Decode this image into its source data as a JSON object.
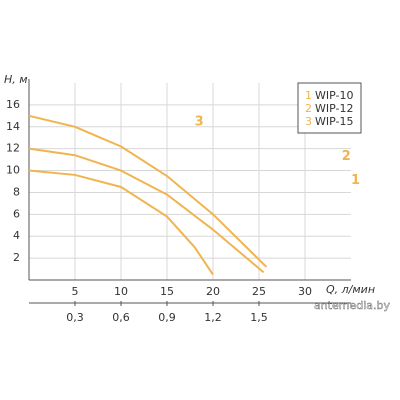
{
  "chart_data": {
    "type": "line",
    "y_label": "H, м",
    "x_label": "Q, л/мин",
    "x": [
      0,
      5,
      10,
      15,
      20,
      25
    ],
    "series": [
      {
        "name": "WIP-10",
        "label": "1",
        "color": "#f0b450",
        "x": [
          0,
          5,
          10,
          15,
          18,
          20
        ],
        "values": [
          10,
          9.6,
          8.5,
          5.8,
          3,
          0.5
        ]
      },
      {
        "name": "WIP-12",
        "label": "2",
        "color": "#f0b450",
        "x": [
          0,
          5,
          10,
          15,
          20,
          25.5
        ],
        "values": [
          12,
          11.4,
          10,
          7.8,
          4.6,
          0.7
        ]
      },
      {
        "name": "WIP-15",
        "label": "3",
        "color": "#f0b450",
        "x": [
          0,
          5,
          10,
          15,
          20,
          25.8
        ],
        "values": [
          15,
          14,
          12.2,
          9.5,
          6,
          1.2
        ]
      }
    ],
    "xlim": [
      0,
      35
    ],
    "xticks": [
      5,
      10,
      15,
      20,
      25,
      30
    ],
    "x2lim": [
      0,
      2.1
    ],
    "x2ticks": [
      {
        "value": 0.3,
        "label": "0,3"
      },
      {
        "value": 0.6,
        "label": "0,6"
      },
      {
        "value": 0.9,
        "label": "0,9"
      },
      {
        "value": 1.2,
        "label": "1,2"
      },
      {
        "value": 1.5,
        "label": "1,5"
      }
    ],
    "ylim": [
      0,
      18
    ],
    "yticks": [
      2,
      4,
      6,
      8,
      10,
      12,
      14,
      16
    ],
    "grid": true,
    "legend": "top-right",
    "watermark": "antemedia.by"
  }
}
